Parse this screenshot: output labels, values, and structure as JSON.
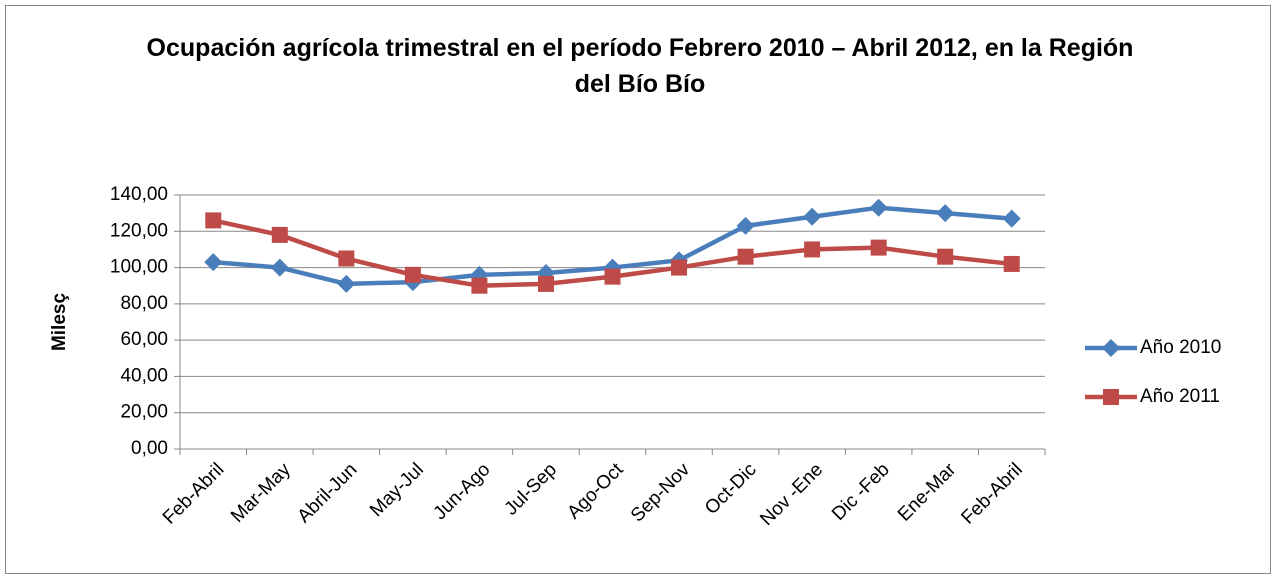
{
  "chart_data": {
    "type": "line",
    "title": "Ocupación agrícola trimestral en el período Febrero 2010 – Abril 2012, en la Región del Bío Bío",
    "y_label": "Milesç",
    "categories": [
      "Feb-Abril",
      "Mar-May",
      "Abril-Jun",
      "May-Jul",
      "Jun-Ago",
      "Jul-Sep",
      "Ago-Oct",
      "Sep-Nov",
      "Oct-Dic",
      "Nov -Ene",
      "Dic -Feb",
      "Ene-Mar",
      "Feb-Abril"
    ],
    "series": [
      {
        "name": "Año 2010",
        "color": "#4a7ebb",
        "marker": "diamond",
        "values": [
          103,
          100,
          91,
          92,
          96,
          97,
          100,
          104,
          123,
          128,
          133,
          130,
          127
        ]
      },
      {
        "name": "Año 2011",
        "color": "#be4b48",
        "marker": "square",
        "values": [
          126,
          118,
          105,
          96,
          90,
          91,
          95,
          100,
          106,
          110,
          111,
          106,
          102
        ]
      }
    ],
    "ylim": [
      0,
      140
    ],
    "yticks": [
      {
        "value": 0,
        "label": "0,00"
      },
      {
        "value": 20,
        "label": "20,00"
      },
      {
        "value": 40,
        "label": "40,00"
      },
      {
        "value": 60,
        "label": "60,00"
      },
      {
        "value": 80,
        "label": "80,00"
      },
      {
        "value": 100,
        "label": "100,00"
      },
      {
        "value": 120,
        "label": "120,00"
      },
      {
        "value": 140,
        "label": "140,00"
      }
    ],
    "grid": true,
    "legend": "right"
  }
}
